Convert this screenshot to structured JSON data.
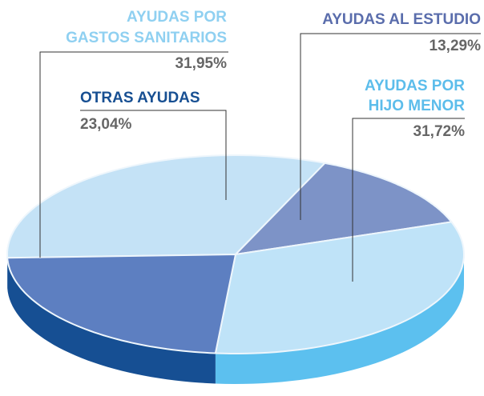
{
  "chart_data": {
    "type": "pie",
    "categories": [
      [
        "AYUDAS POR",
        "GASTOS SANITARIOS"
      ],
      [
        "AYUDAS AL ESTUDIO"
      ],
      [
        "AYUDAS POR",
        "HIJO MENOR"
      ],
      [
        "OTRAS AYUDAS"
      ]
    ],
    "values": [
      31.95,
      13.29,
      31.72,
      23.04
    ],
    "value_labels": [
      "31,95%",
      "13,29%",
      "31,72%",
      "23,04%"
    ],
    "colors": [
      "#c4e2f6",
      "#7d93c7",
      "#bfe3f8",
      "#5d7fc1"
    ],
    "side_colors": [
      "#9dcdee",
      "#4f66a8",
      "#5cc0ef",
      "#164f93"
    ],
    "label_colors": [
      "#8fd0f1",
      "#5a6dac",
      "#5cbdeb",
      "#174f92"
    ]
  }
}
